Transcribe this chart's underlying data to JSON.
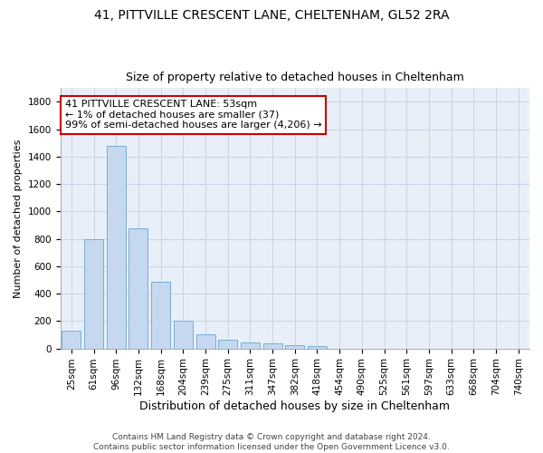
{
  "title1": "41, PITTVILLE CRESCENT LANE, CHELTENHAM, GL52 2RA",
  "title2": "Size of property relative to detached houses in Cheltenham",
  "xlabel": "Distribution of detached houses by size in Cheltenham",
  "ylabel": "Number of detached properties",
  "categories": [
    "25sqm",
    "61sqm",
    "96sqm",
    "132sqm",
    "168sqm",
    "204sqm",
    "239sqm",
    "275sqm",
    "311sqm",
    "347sqm",
    "382sqm",
    "418sqm",
    "454sqm",
    "490sqm",
    "525sqm",
    "561sqm",
    "597sqm",
    "633sqm",
    "668sqm",
    "704sqm",
    "740sqm"
  ],
  "values": [
    130,
    800,
    1480,
    875,
    490,
    205,
    105,
    65,
    45,
    35,
    25,
    20,
    0,
    0,
    0,
    0,
    0,
    0,
    0,
    0,
    0
  ],
  "bar_color": "#c5d8f0",
  "bar_edge_color": "#7aadd4",
  "annotation_text": "41 PITTVILLE CRESCENT LANE: 53sqm\n← 1% of detached houses are smaller (37)\n99% of semi-detached houses are larger (4,206) →",
  "annotation_box_color": "#ffffff",
  "annotation_box_edge_color": "#cc0000",
  "ylim": [
    0,
    1900
  ],
  "yticks": [
    0,
    200,
    400,
    600,
    800,
    1000,
    1200,
    1400,
    1600,
    1800
  ],
  "grid_color": "#c8d4e8",
  "bg_color": "#e8eff8",
  "footer_text": "Contains HM Land Registry data © Crown copyright and database right 2024.\nContains public sector information licensed under the Open Government Licence v3.0.",
  "title_fontsize": 10,
  "subtitle_fontsize": 9,
  "xlabel_fontsize": 9,
  "ylabel_fontsize": 8,
  "tick_fontsize": 7.5,
  "annotation_fontsize": 8,
  "footer_fontsize": 6.5
}
